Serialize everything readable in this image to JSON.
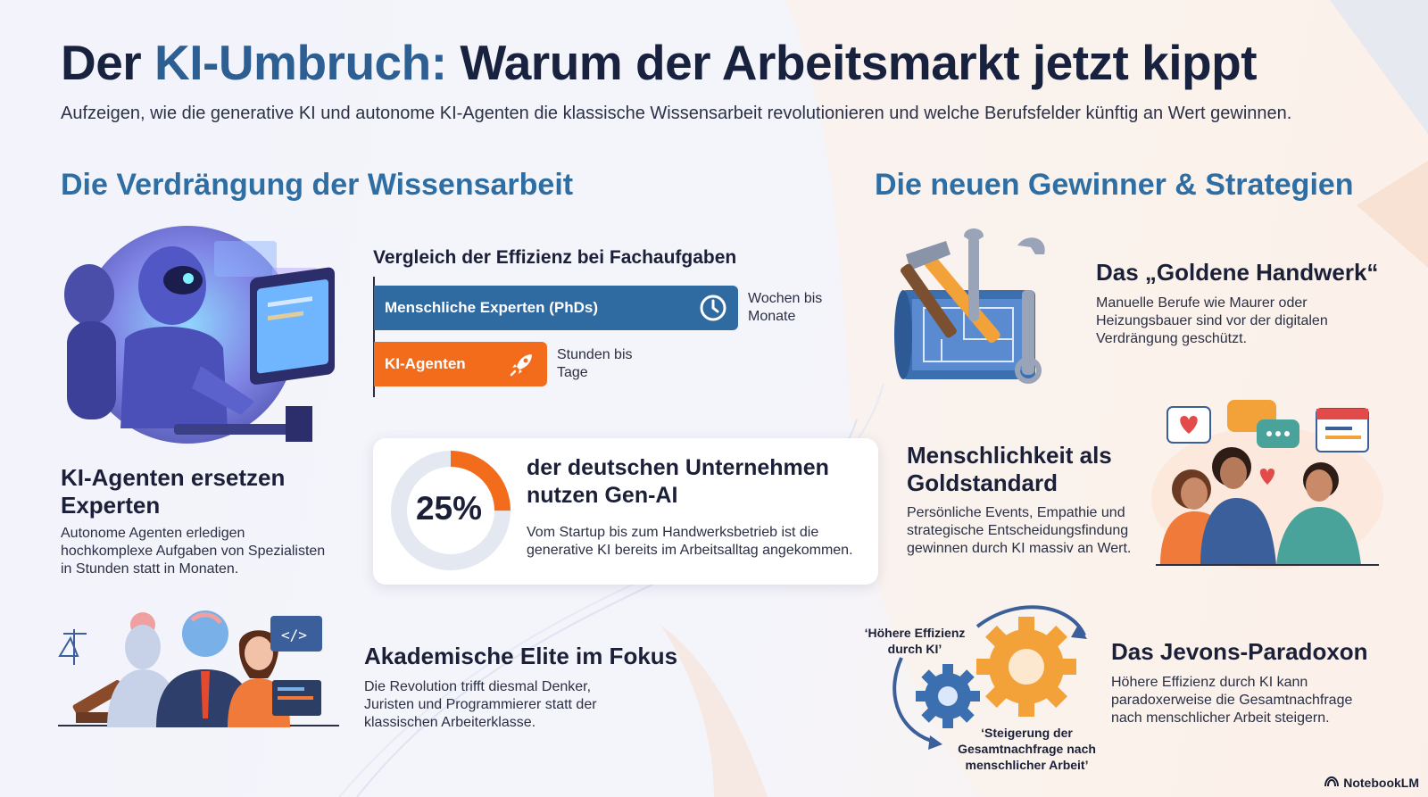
{
  "header": {
    "title_prefix": "Der ",
    "title_accent": "KI-Umbruch:",
    "title_rest": " Warum der Arbeitsmarkt jetzt kippt",
    "subtitle": "Aufzeigen, wie die generative KI und autonome KI-Agenten die klassische Wissensarbeit revolutionieren und welche Berufsfelder künftig an Wert gewinnen."
  },
  "left_section": {
    "heading": "Die Verdrängung der Wissensarbeit",
    "agents": {
      "title": "KI-Agenten ersetzen Experten",
      "text": "Autonome Agenten erledigen hochkomplexe Aufgaben von Spezialisten in Stunden statt in Monaten."
    },
    "elite": {
      "title": "Akademische Elite im Fokus",
      "text": "Die Revolution trifft diesmal Denker, Juristen und Programmierer statt der klassischen Arbeiterklasse."
    }
  },
  "comparison": {
    "title": "Vergleich der Effizienz bei Fachaufgaben",
    "bars": [
      {
        "label": "Menschliche Experten (PhDs)",
        "note": "Wochen bis Monate",
        "color": "#2f6aa0",
        "icon": "clock-icon"
      },
      {
        "label": "KI-Agenten",
        "note": "Stunden bis Tage",
        "color": "#f36c1c",
        "icon": "rocket-icon"
      }
    ]
  },
  "stat": {
    "percent_text": "25%",
    "percent": 25,
    "headline": "der deutschen Unternehmen nutzen Gen-AI",
    "text": "Vom Startup bis zum Handwerksbetrieb ist die generative KI bereits im Arbeitsalltag angekommen.",
    "ring_color": "#f36c1c",
    "track_color": "#e3e8f1"
  },
  "right_section": {
    "heading": "Die neuen Gewinner & Strategien",
    "handwerk": {
      "title": "Das „Goldene Handwerk“",
      "text": "Manuelle Berufe wie Maurer oder Heizungsbauer sind vor der digitalen Verdrängung geschützt."
    },
    "menschlichkeit": {
      "title": "Menschlichkeit als Goldstandard",
      "text": "Persönliche Events, Empathie und strategische Entscheidungsfindung gewinnen durch KI massiv an Wert."
    },
    "jevons": {
      "title": "Das Jevons-Paradoxon",
      "text": "Höhere Effizienz durch KI kann paradoxerweise die Gesamtnachfrage nach menschlicher Arbeit steigern.",
      "label_top": "‘Höhere Effizienz durch KI’",
      "label_bottom": "‘Steigerung der Gesamtnachfrage nach menschlicher Arbeit’"
    }
  },
  "footer": {
    "brand": "NotebookLM"
  }
}
